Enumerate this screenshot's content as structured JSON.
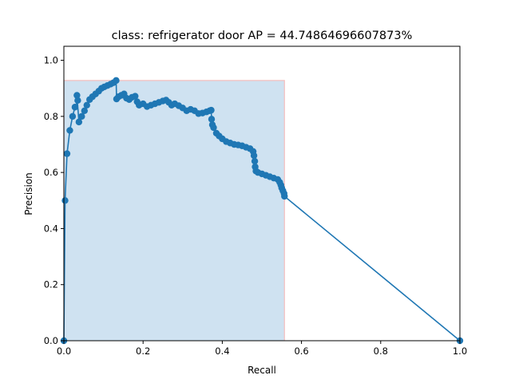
{
  "chart_data": {
    "type": "line",
    "title": "class: refrigerator door AP = 44.74864696607873%",
    "xlabel": "Recall",
    "ylabel": "Precision",
    "xlim": [
      0.0,
      1.0
    ],
    "ylim": [
      0.0,
      1.05
    ],
    "xticks": [
      "0.0",
      "0.2",
      "0.4",
      "0.6",
      "0.8",
      "1.0"
    ],
    "yticks": [
      "0.0",
      "0.2",
      "0.4",
      "0.6",
      "0.8",
      "1.0"
    ],
    "grid": false,
    "colors": {
      "line": "#1f77b4",
      "fill": "#cfe2f1",
      "envelope": "#f4bdbd"
    },
    "envelope": {
      "x": [
        0.0,
        0.0,
        0.133,
        0.133,
        0.557,
        0.557
      ],
      "y": [
        0.0,
        0.928,
        0.928,
        0.928,
        0.928,
        0.0
      ]
    },
    "series": [
      {
        "x": [
          0.0,
          0.003,
          0.008,
          0.015,
          0.022,
          0.028,
          0.035,
          0.033,
          0.038,
          0.045,
          0.052,
          0.058,
          0.065,
          0.072,
          0.08,
          0.088,
          0.095,
          0.102,
          0.11,
          0.118,
          0.125,
          0.132,
          0.133,
          0.138,
          0.145,
          0.152,
          0.158,
          0.165,
          0.172,
          0.18,
          0.185,
          0.19,
          0.2,
          0.21,
          0.22,
          0.23,
          0.24,
          0.25,
          0.258,
          0.265,
          0.272,
          0.28,
          0.29,
          0.3,
          0.31,
          0.32,
          0.33,
          0.34,
          0.35,
          0.36,
          0.368,
          0.372,
          0.373,
          0.375,
          0.378,
          0.385,
          0.392,
          0.4,
          0.41,
          0.42,
          0.43,
          0.44,
          0.45,
          0.46,
          0.47,
          0.478,
          0.48,
          0.482,
          0.483,
          0.485,
          0.49,
          0.5,
          0.51,
          0.52,
          0.53,
          0.54,
          0.545,
          0.548,
          0.55,
          0.553,
          0.556,
          0.557,
          1.0
        ],
        "y": [
          0.0,
          0.5,
          0.667,
          0.75,
          0.8,
          0.833,
          0.857,
          0.875,
          0.78,
          0.8,
          0.82,
          0.84,
          0.86,
          0.87,
          0.88,
          0.89,
          0.9,
          0.905,
          0.91,
          0.915,
          0.92,
          0.928,
          0.862,
          0.87,
          0.875,
          0.88,
          0.865,
          0.86,
          0.868,
          0.872,
          0.852,
          0.84,
          0.845,
          0.835,
          0.84,
          0.845,
          0.85,
          0.855,
          0.858,
          0.85,
          0.84,
          0.845,
          0.838,
          0.83,
          0.82,
          0.825,
          0.82,
          0.81,
          0.812,
          0.816,
          0.82,
          0.822,
          0.79,
          0.77,
          0.76,
          0.74,
          0.73,
          0.72,
          0.71,
          0.705,
          0.7,
          0.698,
          0.695,
          0.69,
          0.685,
          0.675,
          0.66,
          0.64,
          0.62,
          0.605,
          0.6,
          0.595,
          0.59,
          0.585,
          0.58,
          0.575,
          0.565,
          0.555,
          0.545,
          0.535,
          0.525,
          0.515,
          0.0
        ]
      }
    ]
  }
}
